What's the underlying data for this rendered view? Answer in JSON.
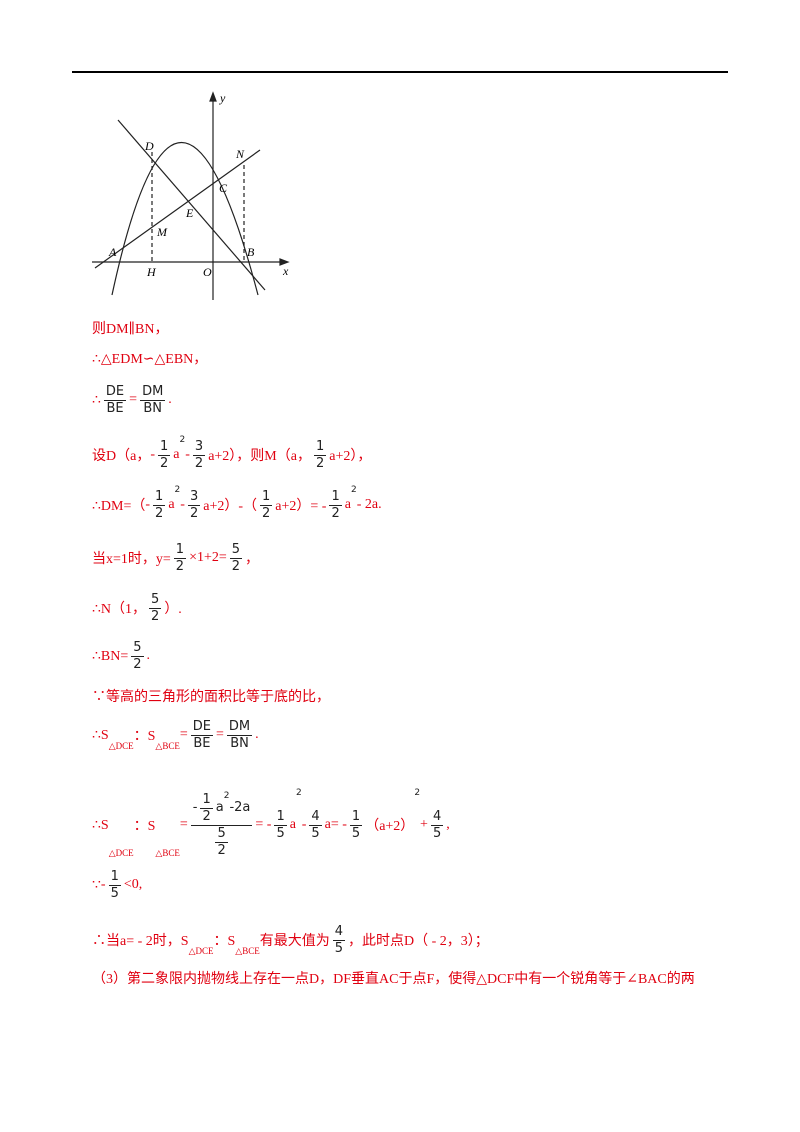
{
  "figure": {
    "labels": [
      "y",
      "D",
      "N",
      "C",
      "E",
      "M",
      "A",
      "B",
      "H",
      "O",
      "x"
    ]
  },
  "lines": [
    {
      "parts": [
        "则DM∥BN，"
      ]
    },
    {
      "parts": [
        "∴△EDM∽△EBN，"
      ]
    },
    {
      "parts": [
        "∴",
        {
          "num": [
            "DE"
          ],
          "den": [
            "BE"
          ]
        },
        "=",
        {
          "num": [
            "DM"
          ],
          "den": [
            "BN"
          ]
        },
        "."
      ]
    },
    {
      "parts": [
        "设D（a，",
        "-",
        {
          "num": [
            "1"
          ],
          "den": [
            "2"
          ]
        },
        "a",
        {
          "sup": "2"
        },
        "-",
        {
          "num": [
            "3"
          ],
          "den": [
            "2"
          ]
        },
        "a+2），则M（a，",
        {
          "num": [
            "1"
          ],
          "den": [
            "2"
          ]
        },
        "a+2），"
      ]
    },
    {
      "parts": [
        "∴DM=（",
        "-",
        {
          "num": [
            "1"
          ],
          "den": [
            "2"
          ]
        },
        "a",
        {
          "sup": "2"
        },
        "-",
        {
          "num": [
            "3"
          ],
          "den": [
            "2"
          ]
        },
        "a+2）-（",
        {
          "num": [
            "1"
          ],
          "den": [
            "2"
          ]
        },
        "a+2）= -",
        {
          "num": [
            "1"
          ],
          "den": [
            "2"
          ]
        },
        "a",
        {
          "sup": "2"
        },
        "- 2a."
      ]
    },
    {
      "parts": [
        "当x=1时，y=",
        {
          "num": [
            "1"
          ],
          "den": [
            "2"
          ]
        },
        "×1+2=",
        {
          "num": [
            "5"
          ],
          "den": [
            "2"
          ]
        },
        "，"
      ]
    },
    {
      "parts": [
        "∴N（1，",
        {
          "num": [
            "5"
          ],
          "den": [
            "2"
          ]
        },
        "）."
      ]
    },
    {
      "parts": [
        "∴BN=",
        {
          "num": [
            "5"
          ],
          "den": [
            "2"
          ]
        },
        "."
      ]
    },
    {
      "parts": [
        "∵等高的三角形的面积比等于底的比，"
      ]
    },
    {
      "parts": [
        "∴S",
        {
          "sub": "△DCE"
        },
        "：S",
        {
          "sub": "△BCE"
        },
        "=",
        {
          "num": [
            "DE"
          ],
          "den": [
            "BE"
          ]
        },
        "=",
        {
          "num": [
            "DM"
          ],
          "den": [
            "BN"
          ]
        },
        "."
      ]
    },
    {
      "parts": [
        "∴S",
        {
          "sub": "△DCE"
        },
        "：S",
        {
          "sub": "△BCE"
        },
        "=",
        {
          "num": [
            "-",
            {
              "num": [
                "1"
              ],
              "den": [
                "2"
              ]
            },
            "a",
            {
              "sup": "2"
            },
            "-2a"
          ],
          "den": [
            {
              "num": [
                "5"
              ],
              "den": [
                "2"
              ]
            }
          ]
        },
        "= -",
        {
          "num": [
            "1"
          ],
          "den": [
            "5"
          ]
        },
        "a",
        {
          "sup": "2"
        },
        "-",
        {
          "num": [
            "4"
          ],
          "den": [
            "5"
          ]
        },
        "a= -",
        {
          "num": [
            "1"
          ],
          "den": [
            "5"
          ]
        },
        "（a+2）",
        {
          "sup": "2"
        },
        "+",
        {
          "num": [
            "4"
          ],
          "den": [
            "5"
          ]
        },
        ","
      ]
    },
    {
      "parts": [
        "∵",
        "-",
        {
          "num": [
            "1"
          ],
          "den": [
            "5"
          ]
        },
        "<0,"
      ]
    },
    {
      "parts": [
        "∴当a= - 2时，S",
        {
          "sub": "△DCE"
        },
        "：S",
        {
          "sub": "△BCE"
        },
        "有最大值为",
        {
          "num": [
            "4"
          ],
          "den": [
            "5"
          ]
        },
        "，此时点D（ - 2，3）；"
      ]
    },
    {
      "parts": [
        "（3）第二象限内抛物线上存在一点D，DF垂直AC于点F，使得△DCF中有一个锐角等于∠BAC的两"
      ]
    }
  ]
}
